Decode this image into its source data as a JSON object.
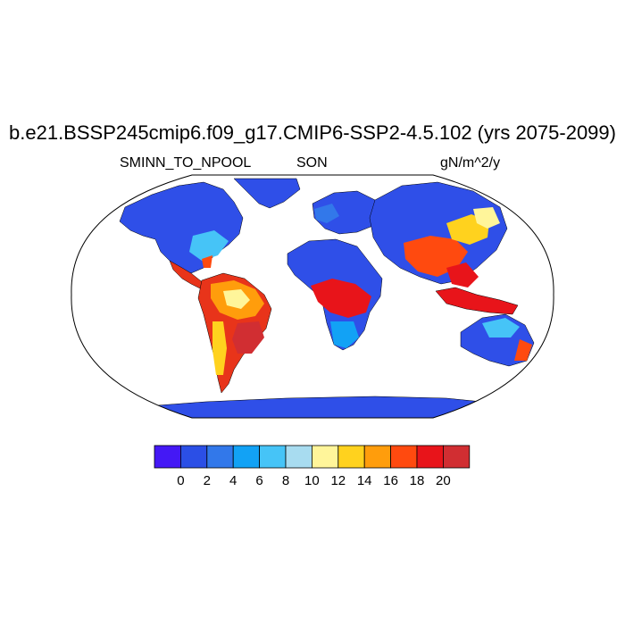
{
  "title": "b.e21.BSSP245cmip6.f09_g17.CMIP6-SSP2-4.5.102 (yrs 2075-2099)",
  "subtitle_left": "SMINN_TO_NPOOL",
  "subtitle_center": "SON",
  "subtitle_right": "gN/m^2/y",
  "map": {
    "projection": "Robinson",
    "ocean_color": "#ffffff",
    "land_default_color": "#2f4fe8",
    "coastline_color": "#000000"
  },
  "colorbar": {
    "levels": [
      "0",
      "2",
      "4",
      "6",
      "8",
      "10",
      "12",
      "14",
      "16",
      "18",
      "20"
    ],
    "colors": [
      "#4418f5",
      "#2b4fe6",
      "#3278ea",
      "#12a2f5",
      "#46c4f7",
      "#a8dcf0",
      "#fff59a",
      "#ffd21e",
      "#ff9d0c",
      "#ff4a0f",
      "#e8141a",
      "#d12e32"
    ]
  }
}
